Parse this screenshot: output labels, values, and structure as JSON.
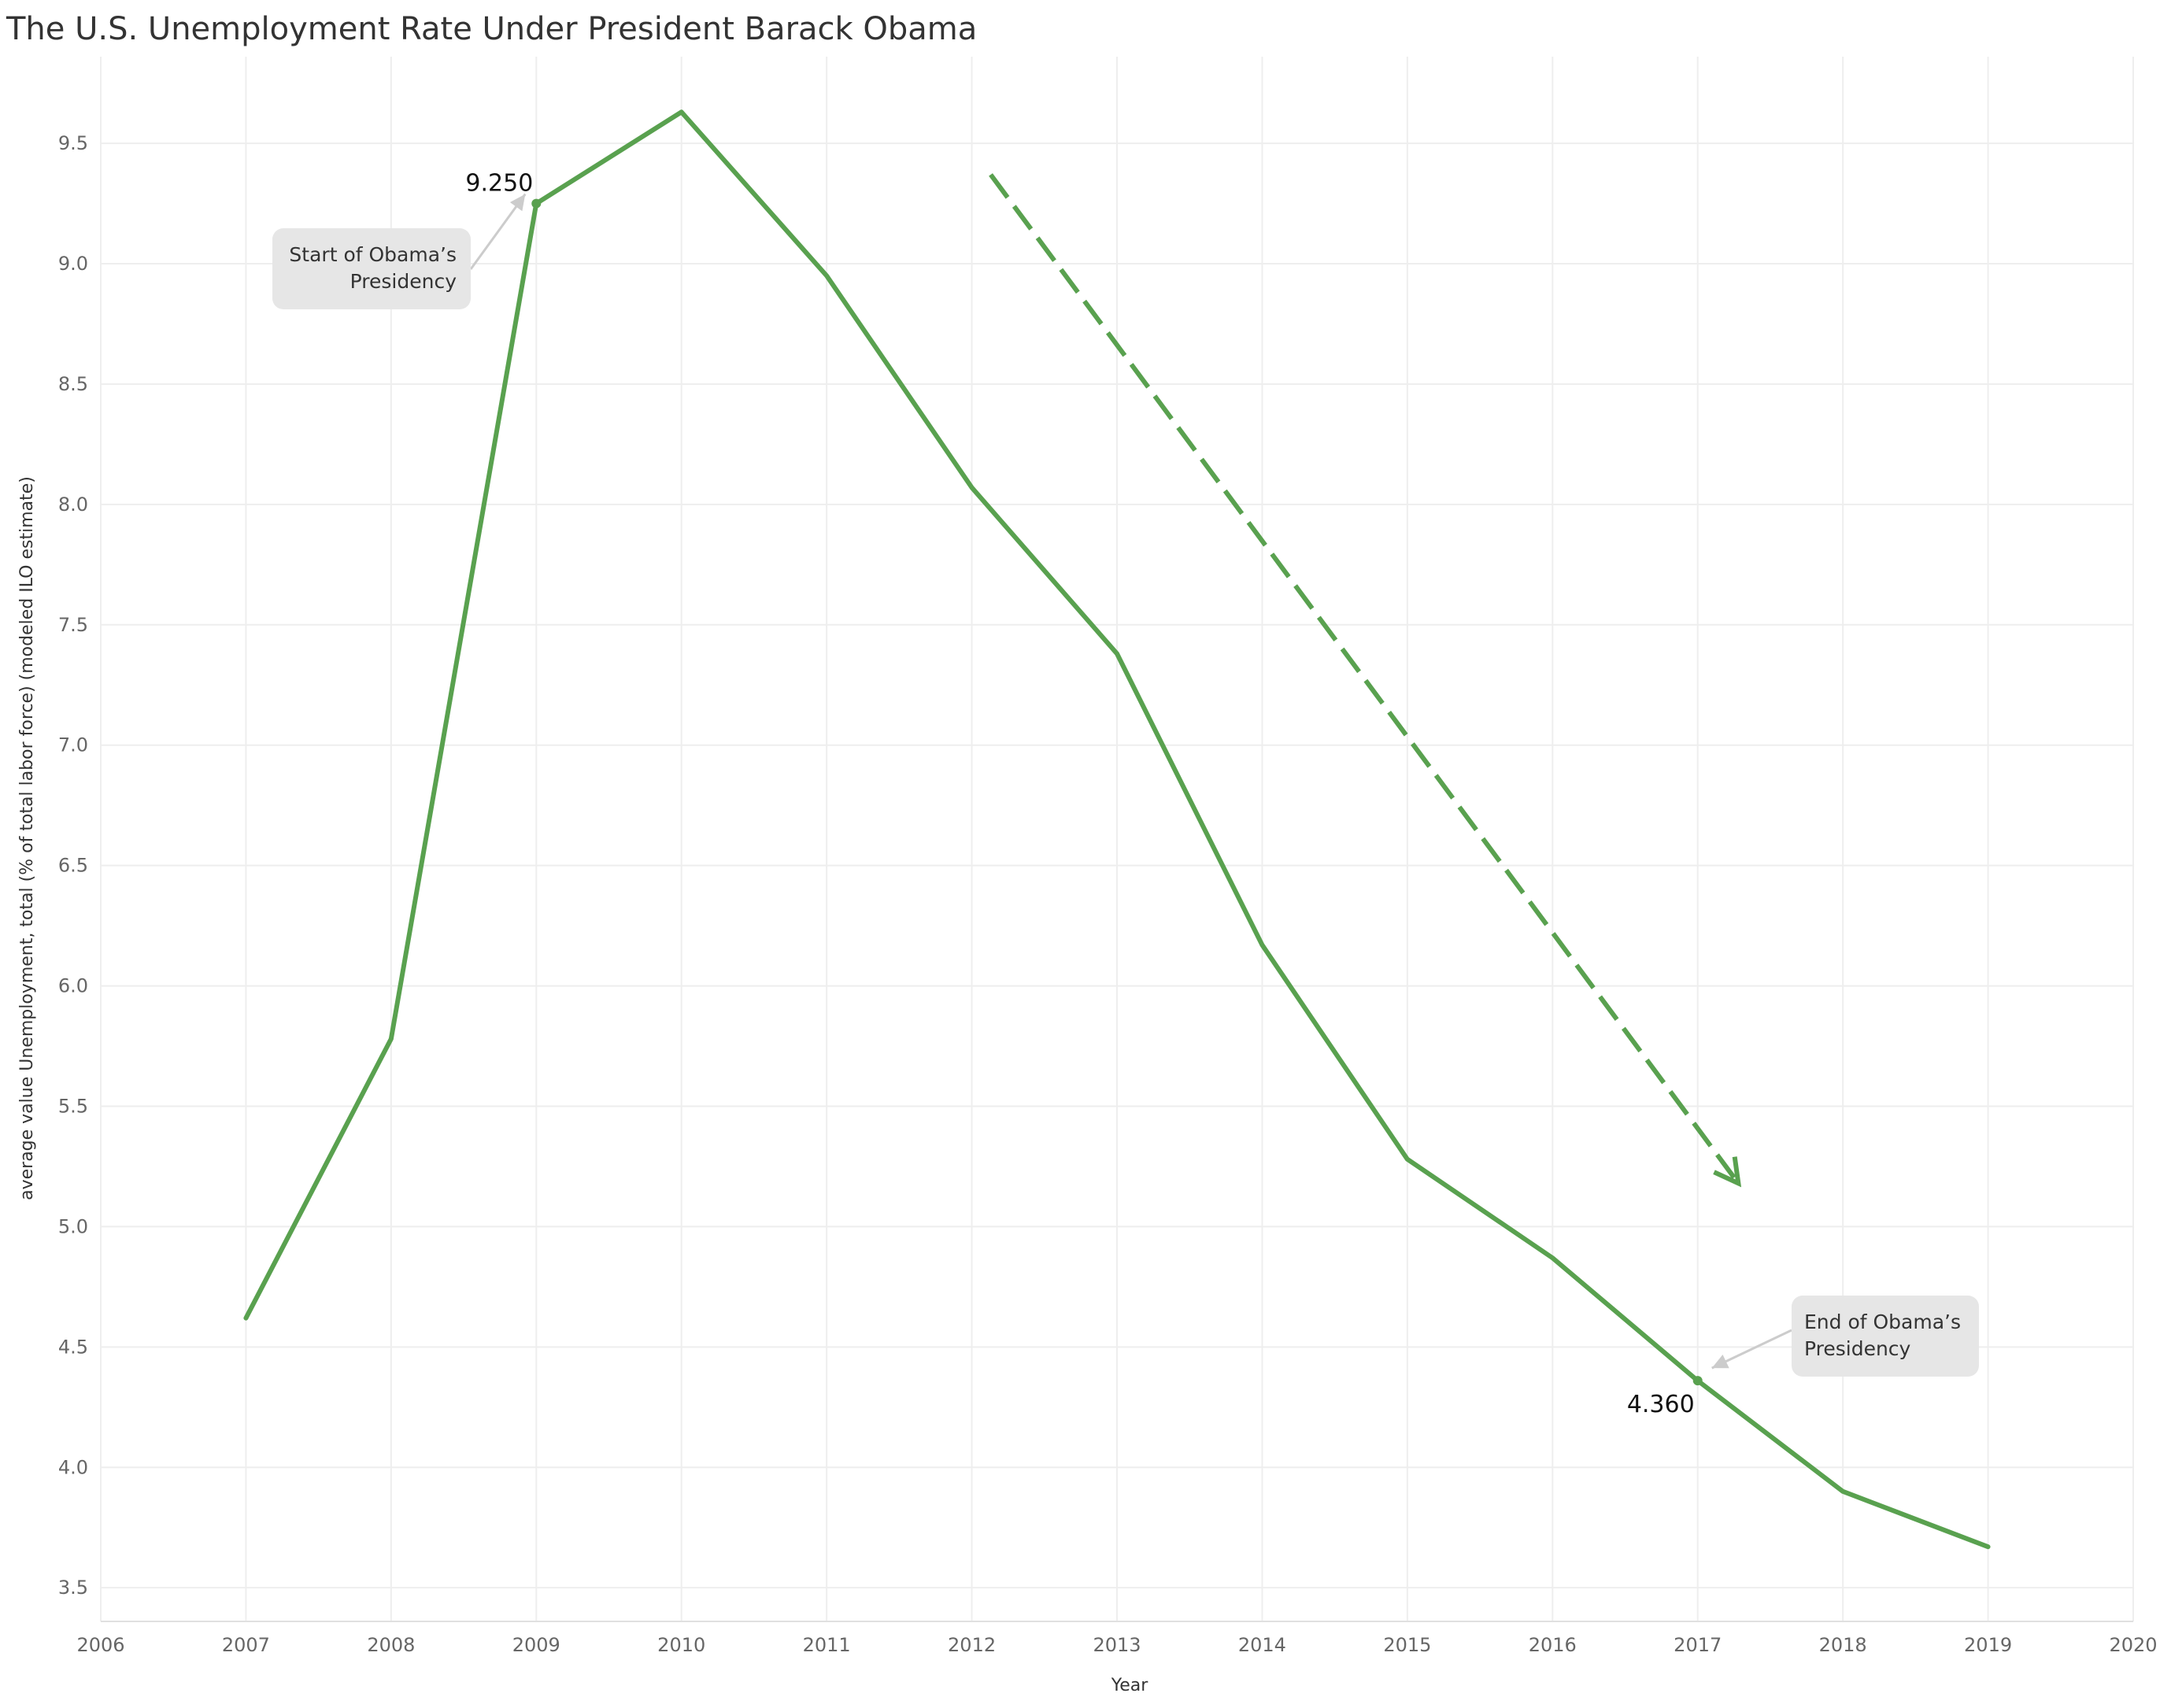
{
  "colors": {
    "line": "#59a14f",
    "grid": "#eeeeee",
    "callout_bg": "#e6e6e6",
    "callout_arrow": "#cccccc",
    "tick_text": "#666666"
  },
  "chart_data": {
    "type": "line",
    "title": "The U.S. Unemployment Rate Under President Barack Obama",
    "xlabel": "Year",
    "ylabel": "average value Unemployment, total (% of total labor force) (modeled ILO estimate)",
    "xlim": [
      2006,
      2020
    ],
    "ylim": [
      3.36,
      9.86
    ],
    "x_ticks": [
      2006,
      2007,
      2008,
      2009,
      2010,
      2011,
      2012,
      2013,
      2014,
      2015,
      2016,
      2017,
      2018,
      2019,
      2020
    ],
    "y_ticks": [
      3.5,
      4.0,
      4.5,
      5.0,
      5.5,
      6.0,
      6.5,
      7.0,
      7.5,
      8.0,
      8.5,
      9.0,
      9.5
    ],
    "grid": true,
    "legend": "none",
    "series": [
      {
        "x": [
          2007,
          2008,
          2009,
          2010,
          2011,
          2012,
          2013,
          2014,
          2015,
          2016,
          2017,
          2018,
          2019
        ],
        "values": [
          4.62,
          5.78,
          9.25,
          9.63,
          8.95,
          8.07,
          7.38,
          6.17,
          5.28,
          4.87,
          4.36,
          3.9,
          3.67
        ]
      }
    ],
    "point_labels": [
      {
        "x": 2009,
        "y": 9.25,
        "text": "9.250"
      },
      {
        "x": 2017,
        "y": 4.36,
        "text": "4.360"
      }
    ],
    "annotations": [
      {
        "x": 2009,
        "y": 9.25,
        "lines": [
          "Start of Obama’s",
          "Presidency"
        ]
      },
      {
        "x": 2017,
        "y": 4.36,
        "lines": [
          "End of Obama’s",
          "Presidency"
        ]
      }
    ],
    "trend_arrow": {
      "from": [
        2012.13,
        9.37
      ],
      "to": [
        2017.28,
        5.18
      ]
    }
  }
}
